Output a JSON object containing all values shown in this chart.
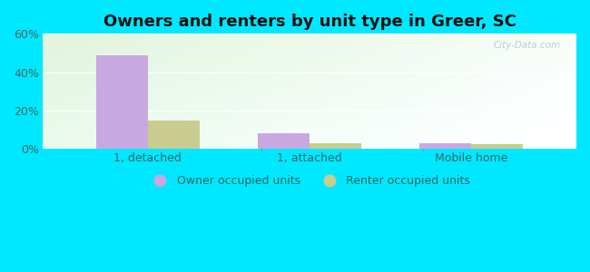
{
  "title": "Owners and renters by unit type in Greer, SC",
  "categories": [
    "1, detached",
    "1, attached",
    "Mobile home"
  ],
  "owner_values": [
    49,
    8,
    3
  ],
  "renter_values": [
    15,
    3,
    2.5
  ],
  "owner_color": "#c9a8e0",
  "renter_color": "#c8cc8e",
  "ylim": [
    0,
    60
  ],
  "yticks": [
    0,
    20,
    40,
    60
  ],
  "yticklabels": [
    "0%",
    "20%",
    "40%",
    "60%"
  ],
  "background_outer": "#00e8ff",
  "legend_owner": "Owner occupied units",
  "legend_renter": "Renter occupied units",
  "bar_width": 0.32,
  "title_fontsize": 13,
  "watermark": "City-Data.com"
}
